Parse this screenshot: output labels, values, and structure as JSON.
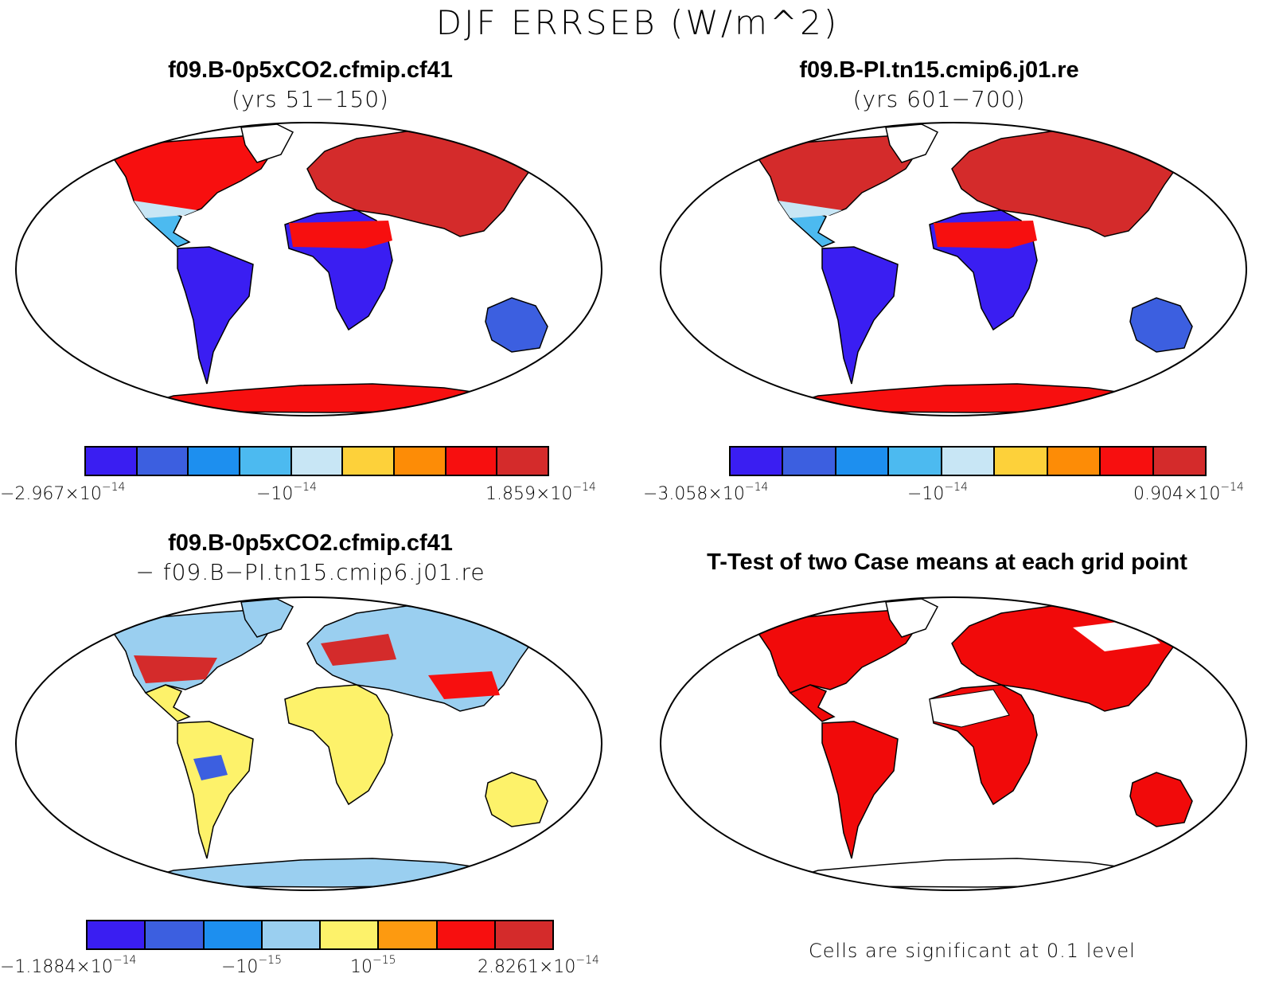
{
  "title": "DJF ERRSEB (W/m^2)",
  "palette_main": [
    "#3a1ef2",
    "#3c5fe0",
    "#1d8fef",
    "#4cbaf0",
    "#c8e6f5",
    "#fdd13a",
    "#fd8c06",
    "#f70f0f",
    "#d42b2b"
  ],
  "palette_diff": [
    "#3a1ef2",
    "#3c5fe0",
    "#1d8fef",
    "#9acff0",
    "#fdf26a",
    "#fd9a10",
    "#f70f0f",
    "#d42b2b"
  ],
  "sig_color": "#f10a0a",
  "panels": [
    {
      "title": "f09.B-0p5xCO2.cfmip.cf41",
      "subtitle": "(yrs 51−150)",
      "colorbar": {
        "tick_min": {
          "base": "−2.967×10",
          "exp": "−14"
        },
        "tick_mid": {
          "base": "−10",
          "exp": "−14"
        },
        "tick_max": {
          "base": "1.859×10",
          "exp": "−14"
        }
      }
    },
    {
      "title": "f09.B-PI.tn15.cmip6.j01.re",
      "subtitle": "(yrs 601−700)",
      "colorbar": {
        "tick_min": {
          "base": "−3.058×10",
          "exp": "−14"
        },
        "tick_mid": {
          "base": "−10",
          "exp": "−14"
        },
        "tick_max": {
          "base": "0.904×10",
          "exp": "−14"
        }
      }
    },
    {
      "title": "f09.B-0p5xCO2.cfmip.cf41",
      "subtitle": "− f09.B−PI.tn15.cmip6.j01.re",
      "colorbar": {
        "tick_1": {
          "base": "−1.1884×10",
          "exp": "−14"
        },
        "tick_2": {
          "base": "−10",
          "exp": "−15"
        },
        "tick_3": {
          "base": "10",
          "exp": "−15"
        },
        "tick_4": {
          "base": "2.8261×10",
          "exp": "−14"
        }
      }
    },
    {
      "title": "T-Test of two Case means at each grid point",
      "note": "Cells are significant at 0.1 level"
    }
  ]
}
